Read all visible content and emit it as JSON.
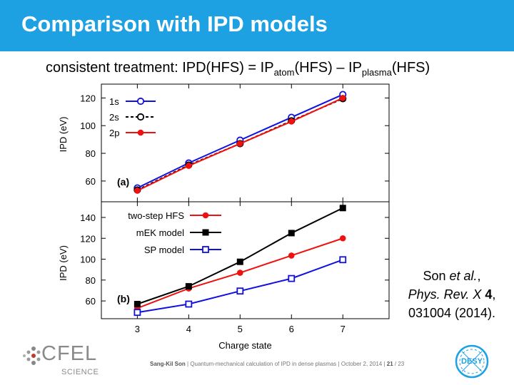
{
  "slide": {
    "title": "Comparison with IPD models",
    "subtitle": {
      "prefix": "consistent treatment: IPD(HFS) = IP",
      "sub1": "atom",
      "mid": "(HFS) – IP",
      "sub2": "plasma",
      "suffix": "(HFS)"
    },
    "citation": {
      "line1_a": "Son ",
      "line1_b": "et al.",
      "line1_c": ",",
      "line2_a": "Phys. Rev. X ",
      "line2_b": "4",
      "line2_c": ",",
      "line3": "031004 (2014)."
    },
    "footer": {
      "author": "Sang-Kil Son",
      "talk": "Quantum-mechanical calculation of IPD in dense plasmas",
      "date": "October 2, 2014",
      "page": "21",
      "total": "23"
    },
    "logos": {
      "cfel": "CFEL",
      "science": "SCIENCE",
      "desy": "DESY"
    },
    "colors": {
      "title_bar": "#1ea1e3",
      "blue": "#1010e0",
      "red": "#f01010",
      "black": "#000000"
    }
  },
  "chart_data": [
    {
      "type": "line",
      "panel_label": "(a)",
      "ylabel": "IPD (eV)",
      "xlim": [
        2.3,
        7.9
      ],
      "ylim": [
        45,
        130
      ],
      "yticks": [
        60,
        80,
        100,
        120
      ],
      "x": [
        3,
        4,
        5,
        6,
        7
      ],
      "legend_position": "top-left",
      "series": [
        {
          "name": "1s",
          "values": [
            55,
            73,
            89.5,
            106,
            122.5
          ],
          "color": "#1010e0",
          "marker": "open-circle",
          "dash": "solid"
        },
        {
          "name": "2s",
          "values": [
            53.5,
            71.5,
            87,
            103.5,
            119.5
          ],
          "color": "#000000",
          "marker": "open-circle",
          "dash": "dashed"
        },
        {
          "name": "2p",
          "values": [
            53,
            71,
            87,
            103,
            120
          ],
          "color": "#f01010",
          "marker": "filled-circle",
          "dash": "solid"
        }
      ]
    },
    {
      "type": "line",
      "panel_label": "(b)",
      "ylabel": "IPD (eV)",
      "xlabel": "Charge state",
      "xlim": [
        2.3,
        7.9
      ],
      "ylim": [
        43,
        155
      ],
      "yticks": [
        60,
        80,
        100,
        120,
        140
      ],
      "xticks": [
        "3",
        "4",
        "5",
        "6",
        "7"
      ],
      "x": [
        3,
        4,
        5,
        6,
        7
      ],
      "legend_position": "top-left",
      "series": [
        {
          "name": "two-step HFS",
          "values": [
            53,
            72,
            87,
            103.5,
            120
          ],
          "color": "#f01010",
          "marker": "filled-circle"
        },
        {
          "name": "mEK model",
          "values": [
            57,
            74,
            97.5,
            125,
            149
          ],
          "color": "#000000",
          "marker": "filled-square"
        },
        {
          "name": "SP model",
          "values": [
            49,
            57,
            69.5,
            81.5,
            99.5
          ],
          "color": "#1010e0",
          "marker": "open-square"
        }
      ]
    }
  ]
}
